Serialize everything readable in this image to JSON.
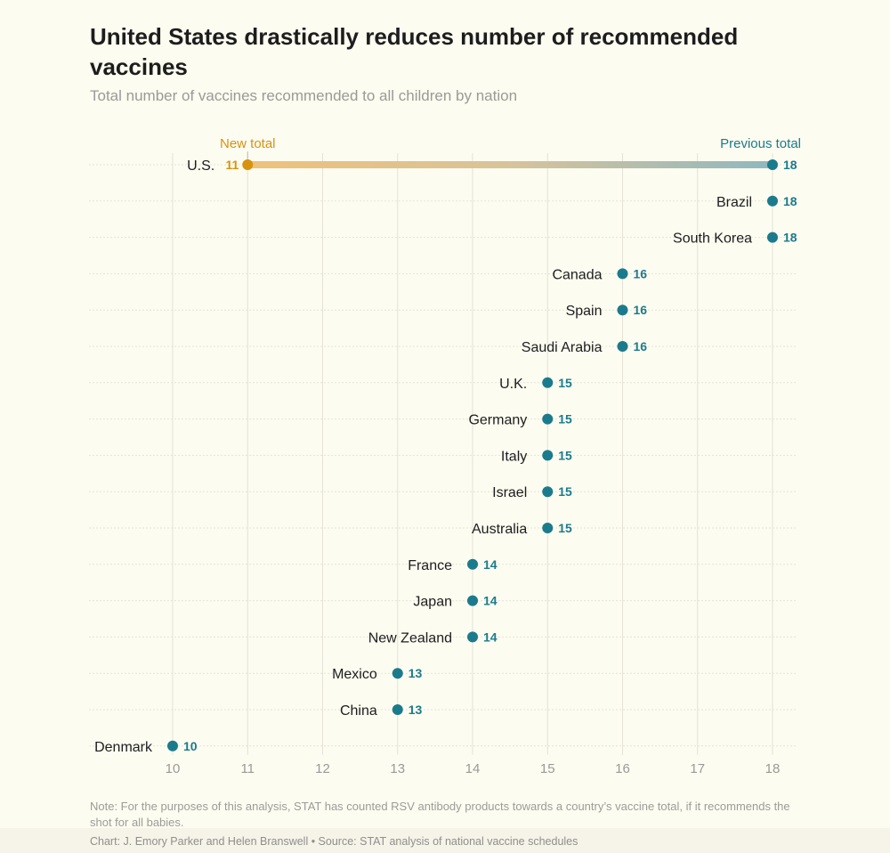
{
  "title": "United States drastically reduces number of recommended vaccines",
  "subtitle": "Total number of vaccines recommended to all children by nation",
  "note": "Note: For the purposes of this analysis, STAT has counted RSV antibody products towards a country’s vaccine total, if it recommends the shot for all babies.",
  "credit": "Chart: J. Emory Parker and Helen Branswell • Source: STAT analysis of national vaccine schedules",
  "colors": {
    "new": "#d9920f",
    "previous": "#1b7b8c",
    "background": "#fdfcf1"
  },
  "chart_data": {
    "type": "dot",
    "xlim": [
      10,
      18
    ],
    "xticks": [
      10,
      11,
      12,
      13,
      14,
      15,
      16,
      17,
      18
    ],
    "grid": true,
    "annotations": {
      "new_label": "New total",
      "previous_label": "Previous total"
    },
    "highlight": {
      "country": "U.S.",
      "new": 11,
      "previous": 18
    },
    "categories": [
      "Brazil",
      "South Korea",
      "Canada",
      "Spain",
      "Saudi Arabia",
      "U.K.",
      "Germany",
      "Italy",
      "Israel",
      "Australia",
      "France",
      "Japan",
      "New Zealand",
      "Mexico",
      "China",
      "Denmark"
    ],
    "values": [
      18,
      18,
      16,
      16,
      16,
      15,
      15,
      15,
      15,
      15,
      14,
      14,
      14,
      13,
      13,
      10
    ]
  }
}
